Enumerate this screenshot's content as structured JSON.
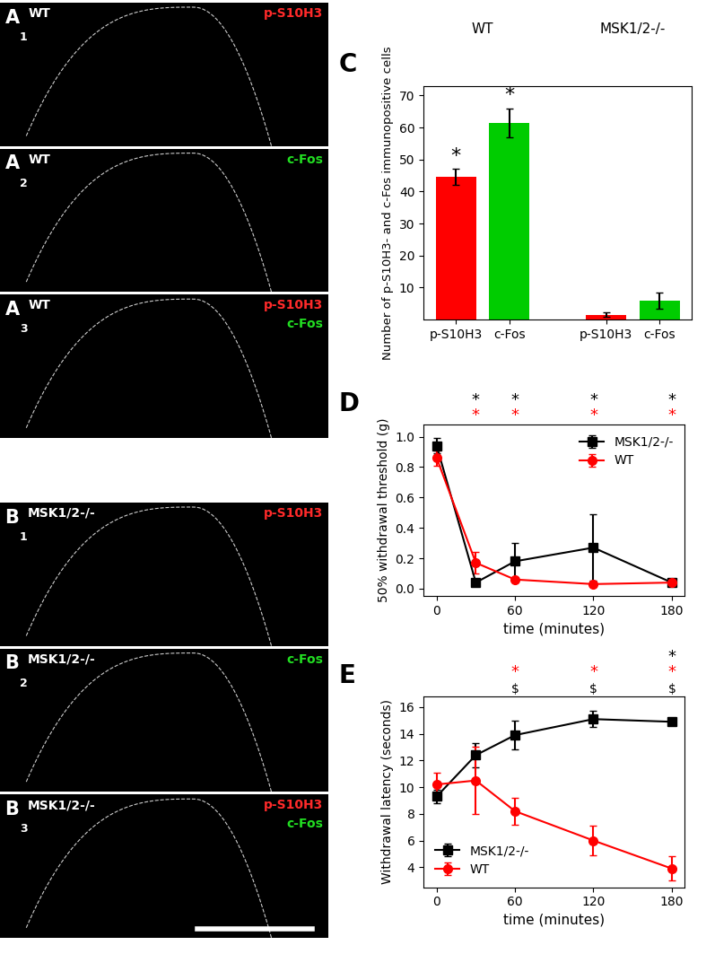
{
  "image_panels": [
    {
      "panel": "A",
      "index": "1",
      "genotype": "WT",
      "stains": [
        {
          "name": "p-S10H3",
          "color": "#ff2a2a"
        }
      ]
    },
    {
      "panel": "A",
      "index": "2",
      "genotype": "WT",
      "stains": [
        {
          "name": "c-Fos",
          "color": "#22dd22"
        }
      ]
    },
    {
      "panel": "A",
      "index": "3",
      "genotype": "WT",
      "stains": [
        {
          "name": "p-S10H3",
          "color": "#ff2a2a"
        },
        {
          "name": "c-Fos",
          "color": "#22dd22"
        }
      ]
    },
    {
      "panel": "B",
      "index": "1",
      "genotype": "MSK1/2-/-",
      "stains": [
        {
          "name": "p-S10H3",
          "color": "#ff2a2a"
        }
      ]
    },
    {
      "panel": "B",
      "index": "2",
      "genotype": "MSK1/2-/-",
      "stains": [
        {
          "name": "c-Fos",
          "color": "#22dd22"
        }
      ]
    },
    {
      "panel": "B",
      "index": "3",
      "genotype": "MSK1/2-/-",
      "stains": [
        {
          "name": "p-S10H3",
          "color": "#ff2a2a"
        },
        {
          "name": "c-Fos",
          "color": "#22dd22"
        }
      ]
    }
  ],
  "chart_data": [
    {
      "panel": "C",
      "type": "bar",
      "categories": [
        "p-S10H3",
        "c-Fos",
        "p-S10H3",
        "c-Fos"
      ],
      "groups": [
        "WT",
        "MSK1/2-/-"
      ],
      "values": [
        44.5,
        61.5,
        1.5,
        6
      ],
      "errors": [
        2.5,
        4.5,
        0.7,
        2.5
      ],
      "colors": [
        "#ff0000",
        "#00cc00",
        "#ff0000",
        "#00cc00"
      ],
      "y_label": "Number of p-S10H3- and c-Fos immunopositive cells",
      "ylim": [
        0,
        73
      ],
      "yticks": [
        10,
        20,
        30,
        40,
        50,
        60,
        70
      ],
      "annotations": [
        {
          "text": "*",
          "category_index": 0
        },
        {
          "text": "*",
          "category_index": 1
        }
      ]
    },
    {
      "panel": "D",
      "type": "line",
      "x": [
        0,
        30,
        60,
        120,
        180
      ],
      "xlim": [
        -10,
        190
      ],
      "xticks": [
        0,
        60,
        120,
        180
      ],
      "ylim": [
        -0.05,
        1.08
      ],
      "yticks": [
        {
          "value": 0,
          "label": "0.0"
        },
        {
          "value": 0.2,
          "label": "0.2"
        },
        {
          "value": 0.4,
          "label": "0.4"
        },
        {
          "value": 0.6,
          "label": "0.6"
        },
        {
          "value": 0.8,
          "label": "0.8"
        },
        {
          "value": 1.0,
          "label": "1.0"
        }
      ],
      "x_label": "time (minutes)",
      "y_label": "50% withdrawal threshold (g)",
      "legend": "upper right",
      "series": [
        {
          "name": "MSK1/2-/-",
          "color": "#000000",
          "marker": "square",
          "values": [
            0.94,
            0.04,
            0.18,
            0.27,
            0.04
          ],
          "errors": [
            0.05,
            0.01,
            0.12,
            0.22,
            0.01
          ]
        },
        {
          "name": "WT",
          "color": "#ff0000",
          "marker": "circle",
          "values": [
            0.86,
            0.17,
            0.06,
            0.03,
            0.04
          ],
          "errors": [
            0.05,
            0.07,
            0.01,
            0.01,
            0.01
          ]
        }
      ],
      "annotations": [
        {
          "text": "*",
          "color": "#000000",
          "x": [
            30,
            60,
            120,
            180
          ]
        },
        {
          "text": "*",
          "color": "#ff0000",
          "x": [
            30,
            60,
            120,
            180
          ]
        }
      ]
    },
    {
      "panel": "E",
      "type": "line",
      "x": [
        0,
        30,
        60,
        120,
        180
      ],
      "xlim": [
        -10,
        190
      ],
      "xticks": [
        0,
        60,
        120,
        180
      ],
      "ylim": [
        2.5,
        16.8
      ],
      "yticks": [
        4,
        6,
        8,
        10,
        12,
        14,
        16
      ],
      "x_label": "time (minutes)",
      "y_label": "Withdrawal latency (seconds)",
      "legend": "lower left",
      "series": [
        {
          "name": "MSK1/2-/-",
          "color": "#000000",
          "marker": "square",
          "values": [
            9.3,
            12.4,
            13.9,
            15.1,
            14.9
          ],
          "errors": [
            0.5,
            0.9,
            1.1,
            0.6,
            0.2
          ]
        },
        {
          "name": "WT",
          "color": "#ff0000",
          "marker": "circle",
          "values": [
            10.2,
            10.5,
            8.2,
            6.0,
            3.9
          ],
          "errors": [
            0.9,
            2.5,
            1.0,
            1.1,
            0.9
          ]
        }
      ],
      "annotations": [
        {
          "text": "*",
          "color": "#000000",
          "x": [
            180
          ]
        },
        {
          "text": "*",
          "color": "#ff0000",
          "x": [
            60,
            120,
            180
          ]
        },
        {
          "text": "$",
          "color": "#000000",
          "x": [
            60,
            120,
            180
          ]
        }
      ]
    }
  ]
}
